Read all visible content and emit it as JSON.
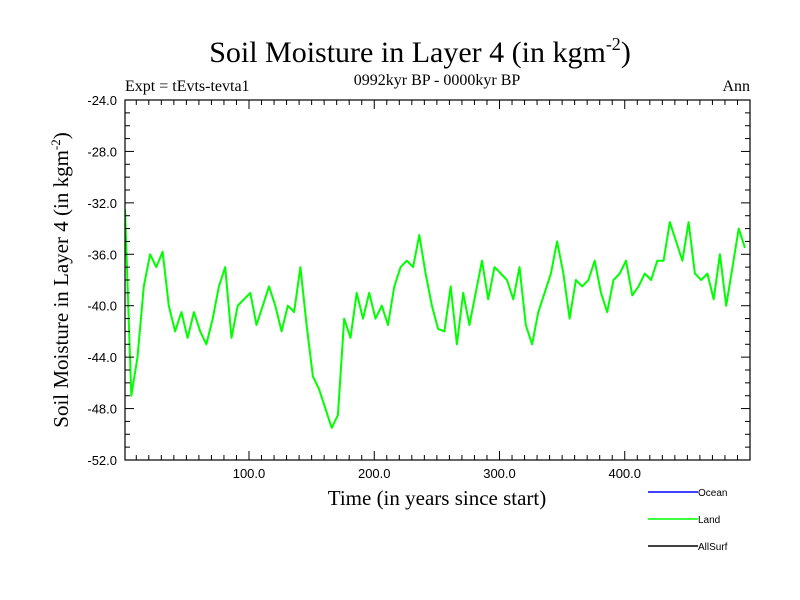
{
  "chart_data": {
    "type": "line",
    "title": "Soil Moisture in Layer 4 (in kgm",
    "title_superscript": "-2",
    "title_suffix": ")",
    "subtitle": "0992kyr BP - 0000kyr BP",
    "left_label": "Expt = tEvts-tevta1",
    "right_label": "Ann",
    "xlabel": "Time (in years since start)",
    "ylabel": "Soil Moisture in Layer 4 (in kgm",
    "ylabel_superscript": "-2",
    "ylabel_suffix": ")",
    "xlim": [
      1,
      500
    ],
    "ylim": [
      -52,
      -24
    ],
    "xticks": [
      100,
      200,
      300,
      400
    ],
    "xtick_labels": [
      "100.0",
      "200.0",
      "300.0",
      "400.0"
    ],
    "yticks": [
      -24,
      -28,
      -32,
      -36,
      -40,
      -44,
      -48,
      -52
    ],
    "ytick_labels": [
      "-24.0",
      "-28.0",
      "-32.0",
      "-36.0",
      "-40.0",
      "-44.0",
      "-48.0",
      "-52.0"
    ],
    "grid": false,
    "legend_position": "bottom-right",
    "series": [
      {
        "name": "Ocean",
        "color": "#0000ff",
        "values": []
      },
      {
        "name": "Land",
        "color": "#00ff00",
        "x_start": 1,
        "x_step": 5,
        "values": [
          -32.5,
          -47,
          -44,
          -38.5,
          -36,
          -37,
          -35.8,
          -40,
          -42,
          -40.5,
          -42.5,
          -40.5,
          -42,
          -43,
          -41,
          -38.5,
          -37,
          -42.5,
          -40,
          -39.5,
          -39,
          -41.5,
          -40,
          -38.5,
          -40,
          -42,
          -40,
          -40.5,
          -37,
          -41.5,
          -45.5,
          -46.5,
          -48,
          -49.5,
          -48.5,
          -41,
          -42.5,
          -39,
          -41,
          -39,
          -41,
          -40,
          -41.5,
          -38.5,
          -37,
          -36.5,
          -37,
          -34.5,
          -37.5,
          -40,
          -41.8,
          -42,
          -38.5,
          -43,
          -39,
          -41.5,
          -39,
          -36.5,
          -39.5,
          -37,
          -37.5,
          -38,
          -39.5,
          -37,
          -41.5,
          -43,
          -40.5,
          -39,
          -37.5,
          -35,
          -37.5,
          -41,
          -38,
          -38.5,
          -38,
          -36.5,
          -39,
          -40.5,
          -38,
          -37.5,
          -36.5,
          -39.2,
          -38.5,
          -37.5,
          -38,
          -36.5,
          -36.5,
          -33.5,
          -35,
          -36.5,
          -33.5,
          -37.5,
          -38,
          -37.5,
          -39.5,
          -36,
          -40,
          -37,
          -34,
          -35.5
        ]
      },
      {
        "name": "AllSurf",
        "color": "#000000",
        "values": []
      }
    ],
    "legend": [
      {
        "label": "Ocean",
        "color": "#0000ff"
      },
      {
        "label": "Land",
        "color": "#00ff00"
      },
      {
        "label": "AllSurf",
        "color": "#000000"
      }
    ]
  }
}
